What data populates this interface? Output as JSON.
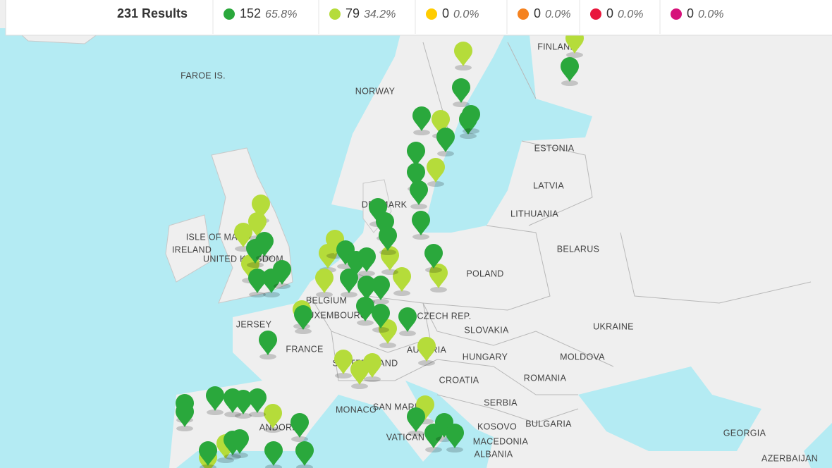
{
  "results_bar": {
    "total": "231 Results",
    "stats": [
      {
        "count": 152,
        "percent": "65.8%",
        "color": "#2aa83c"
      },
      {
        "count": 79,
        "percent": "34.2%",
        "color": "#b5dc3a"
      },
      {
        "count": 0,
        "percent": "0.0%",
        "color": "#ffcc00"
      },
      {
        "count": 0,
        "percent": "0.0%",
        "color": "#f5821f"
      },
      {
        "count": 0,
        "percent": "0.0%",
        "color": "#e8173c"
      },
      {
        "count": 0,
        "percent": "0.0%",
        "color": "#d6127a"
      }
    ]
  },
  "map": {
    "labels": [
      "FAROE IS.",
      "NORWAY",
      "FINLAND",
      "ESTONIA",
      "LATVIA",
      "LITHUANIA",
      "BELARUS",
      "POLAND",
      "UKRAINE",
      "MOLDOVA",
      "ROMANIA",
      "HUNGARY",
      "SLOVAKIA",
      "CZECH REP.",
      "AUSTRIA",
      "SWITZERLAND",
      "FRANCE",
      "JERSEY",
      "BELGIUM",
      "LUXEMBOURG",
      "DENMARK",
      "UNITED KINGDOM",
      "IRELAND",
      "ISLE OF MAN",
      "CROATIA",
      "SERBIA",
      "BULGARIA",
      "KOSOVO",
      "MACEDONIA",
      "ALBANIA",
      "GEORGIA",
      "AZERBAIJAN",
      "MONACO",
      "SAN MARINO",
      "VATICAN",
      "ANDORRA"
    ]
  }
}
